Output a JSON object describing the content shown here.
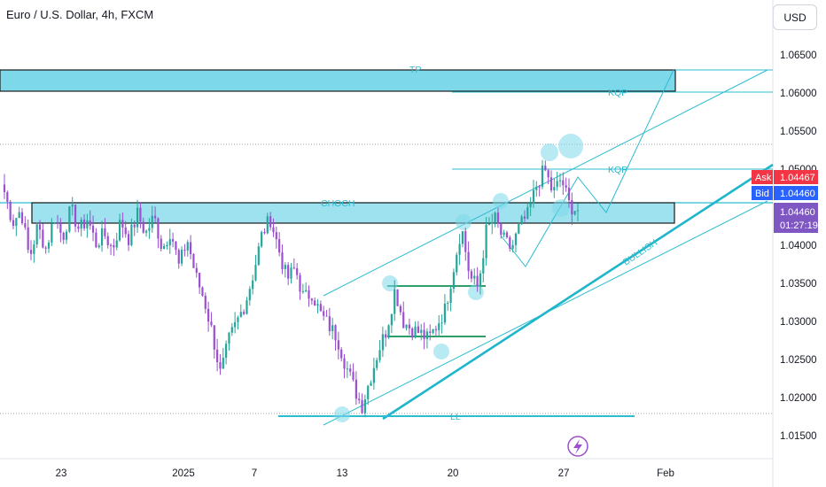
{
  "header": {
    "title": "Euro / U.S. Dollar, 4h, FXCM",
    "currency_button": "USD"
  },
  "price_tags": {
    "ask_label": "Ask",
    "ask_value": "1.04467",
    "bid_label": "Bid",
    "bid_value": "1.04460",
    "last_value": "1.04460",
    "countdown": "01:27:19"
  },
  "annotations": {
    "tp": "TP",
    "kqp_upper": "KQP",
    "kqp_lower": "KQP",
    "choch": "CHOCH",
    "bullish": "BULLISH",
    "ll": "LL"
  },
  "icons": {
    "flash": "lightning-icon"
  },
  "colors": {
    "up": "#26a69a",
    "down": "#9c4fd0",
    "zone": "#7dd8ea",
    "annotation": "#2bbcd0",
    "ask": "#f23645",
    "bid": "#2962ff",
    "last": "#7e57c2"
  },
  "chart_data": {
    "type": "candlestick",
    "symbol": "EUR/USD",
    "timeframe": "4h",
    "ylim": [
      1.0135,
      1.0705
    ],
    "y_ticks": [
      "1.06500",
      "1.06000",
      "1.05500",
      "1.05000",
      "1.04500",
      "1.04000",
      "1.03500",
      "1.03000",
      "1.02500",
      "1.02000",
      "1.01500"
    ],
    "x_ticks": [
      "23",
      "2025",
      "7",
      "13",
      "20",
      "27",
      "Feb"
    ],
    "price_path": [
      [
        1.047,
        1.043,
        1.0447,
        1.0382,
        1.0425,
        1.0395,
        1.0438,
        1.041,
        1.0448,
        1.042
      ],
      [
        1.0435,
        1.0402,
        1.0415,
        1.0395,
        1.0432,
        1.0408,
        1.0441,
        1.0415,
        1.0438,
        1.0395
      ],
      [
        1.042,
        1.0372,
        1.0408,
        1.036,
        1.033,
        1.0285,
        1.023,
        1.0275,
        1.03,
        1.0325
      ],
      [
        1.0365,
        1.0415,
        1.0435,
        1.0395,
        1.0355,
        1.037,
        1.033,
        1.0338,
        1.031,
        1.0295
      ],
      [
        1.028,
        1.0245,
        1.0215,
        1.0188,
        1.0225,
        1.0262,
        1.029,
        1.0342,
        1.03,
        1.029
      ],
      [
        1.0285,
        1.0276,
        1.0295,
        1.0315,
        1.0368,
        1.0425,
        1.0358,
        1.0345,
        1.042,
        1.0435
      ],
      [
        1.0408,
        1.0395,
        1.0425,
        1.044,
        1.0478,
        1.05,
        1.0468,
        1.0488,
        1.0452,
        1.0446
      ]
    ],
    "zones": [
      {
        "label": "TP",
        "from": 1.0602,
        "to": 1.0632
      },
      {
        "label": "CHOCH",
        "from": 1.043,
        "to": 1.0457
      }
    ],
    "levels": [
      {
        "label": "KQP",
        "value": 1.06
      },
      {
        "label": "KQP",
        "value": 1.05
      },
      {
        "label": "LL",
        "value": 1.0175
      }
    ],
    "last_price": 1.0446,
    "ask": 1.04467,
    "bid": 1.0446,
    "grid": false
  }
}
